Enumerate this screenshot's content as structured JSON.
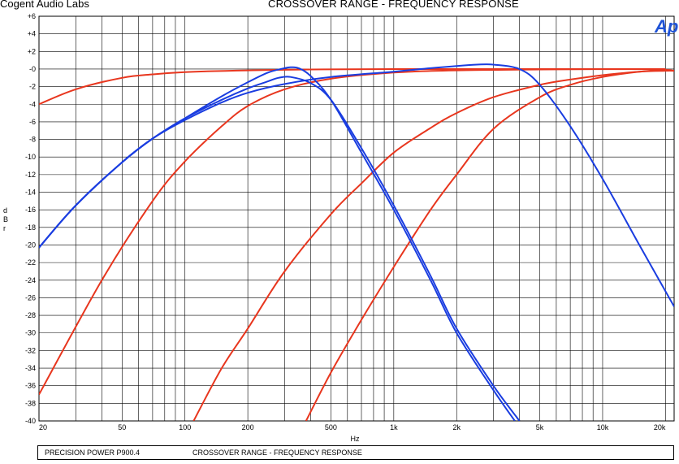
{
  "header": {
    "brand": "Cogent Audio Labs",
    "title": "CROSSOVER RANGE  -  FREQUENCY RESPONSE",
    "logo": "Ap"
  },
  "footer": {
    "left": "PRECISION POWER  P900.4",
    "right": "CROSSOVER RANGE   -   FREQUENCY RESPONSE"
  },
  "colors": {
    "red": "#e8361e",
    "blue": "#1a3de0",
    "logo": "#1f53d6"
  },
  "chart_data": {
    "type": "line",
    "title": "CROSSOVER RANGE  -  FREQUENCY RESPONSE",
    "xlabel": "Hz",
    "ylabel": "dBr",
    "xscale": "log",
    "xlim": [
      20,
      22000
    ],
    "ylim": [
      -40,
      6
    ],
    "grid": true,
    "x_tick_labels": [
      {
        "value": 20,
        "label": "20"
      },
      {
        "value": 50,
        "label": "50"
      },
      {
        "value": 100,
        "label": "100"
      },
      {
        "value": 200,
        "label": "200"
      },
      {
        "value": 500,
        "label": "500"
      },
      {
        "value": 1000,
        "label": "1k"
      },
      {
        "value": 2000,
        "label": "2k"
      },
      {
        "value": 5000,
        "label": "5k"
      },
      {
        "value": 10000,
        "label": "10k"
      },
      {
        "value": 20000,
        "label": "20k"
      }
    ],
    "y_tick_labels": [
      {
        "value": 6,
        "label": "+6"
      },
      {
        "value": 4,
        "label": "+4"
      },
      {
        "value": 2,
        "label": "+2"
      },
      {
        "value": 0,
        "label": "-0"
      },
      {
        "value": -2,
        "label": "-2"
      },
      {
        "value": -4,
        "label": "-4"
      },
      {
        "value": -6,
        "label": "-6"
      },
      {
        "value": -8,
        "label": "-8"
      },
      {
        "value": -10,
        "label": "-10"
      },
      {
        "value": -12,
        "label": "-12"
      },
      {
        "value": -14,
        "label": "-14"
      },
      {
        "value": -16,
        "label": "-16"
      },
      {
        "value": -18,
        "label": "-18"
      },
      {
        "value": -20,
        "label": "-20"
      },
      {
        "value": -22,
        "label": "-22"
      },
      {
        "value": -24,
        "label": "-24"
      },
      {
        "value": -26,
        "label": "-26"
      },
      {
        "value": -28,
        "label": "-28"
      },
      {
        "value": -30,
        "label": "-30"
      },
      {
        "value": -32,
        "label": "-32"
      },
      {
        "value": -34,
        "label": "-34"
      },
      {
        "value": -36,
        "label": "-36"
      },
      {
        "value": -38,
        "label": "-38"
      },
      {
        "value": -40,
        "label": "-40"
      }
    ],
    "series": [
      {
        "color": "red",
        "x": [
          20,
          30,
          50,
          70,
          100,
          200,
          400,
          1000,
          5000,
          20000
        ],
        "y": [
          -4,
          -2.3,
          -1.0,
          -0.6,
          -0.35,
          -0.15,
          -0.05,
          0,
          0,
          0
        ]
      },
      {
        "color": "red",
        "x": [
          20,
          40,
          70,
          100,
          150,
          200,
          300,
          500,
          1000,
          2000,
          5000,
          20000
        ],
        "y": [
          -37,
          -24,
          -15,
          -10.5,
          -6.5,
          -4.2,
          -2.3,
          -1.1,
          -0.4,
          -0.15,
          -0.05,
          0
        ]
      },
      {
        "color": "red",
        "x": [
          110,
          150,
          200,
          300,
          500,
          700,
          1000,
          1500,
          2000,
          3000,
          5000,
          7000,
          10000,
          15000,
          20000,
          22000
        ],
        "y": [
          -40,
          -34,
          -29.5,
          -23,
          -16.5,
          -13,
          -9.5,
          -6.7,
          -5,
          -3.2,
          -1.8,
          -1.2,
          -0.7,
          -0.3,
          -0.2,
          -0.2
        ]
      },
      {
        "color": "red",
        "x": [
          380,
          500,
          700,
          1000,
          1500,
          2000,
          3000,
          5000,
          7000,
          10000,
          15000,
          20000,
          22000
        ],
        "y": [
          -40,
          -34.5,
          -28.5,
          -22.5,
          -16,
          -12,
          -6.8,
          -3.2,
          -1.8,
          -0.9,
          -0.3,
          -0.1,
          -0.2
        ]
      },
      {
        "color": "blue",
        "x": [
          20,
          30,
          50,
          70,
          100,
          150,
          200,
          250,
          280,
          320,
          400,
          500,
          700,
          1000,
          1500,
          2000,
          3000,
          4000
        ],
        "y": [
          -20.3,
          -15.5,
          -10.6,
          -7.9,
          -5.6,
          -3.5,
          -2.2,
          -1.4,
          -1.0,
          -0.9,
          -1.6,
          -3.5,
          -9,
          -15.5,
          -23.5,
          -29.5,
          -36,
          -40
        ]
      },
      {
        "color": "blue",
        "x": [
          20,
          30,
          50,
          70,
          100,
          150,
          200,
          250,
          300,
          320,
          350,
          400,
          500,
          700,
          1000,
          1500,
          2000,
          3000,
          3800
        ],
        "y": [
          -20.3,
          -15.5,
          -10.6,
          -7.9,
          -5.6,
          -3.1,
          -1.5,
          -0.4,
          0.1,
          0.2,
          0.1,
          -0.8,
          -3.5,
          -9.5,
          -16,
          -24,
          -30,
          -36.5,
          -40
        ]
      },
      {
        "color": "blue",
        "x": [
          20,
          30,
          50,
          70,
          100,
          150,
          200,
          300,
          500,
          1000,
          1500,
          2000,
          2500,
          3000,
          4000,
          5000,
          7000,
          10000,
          15000,
          22000
        ],
        "y": [
          -20.3,
          -15.5,
          -10.6,
          -7.9,
          -5.8,
          -3.8,
          -2.7,
          -1.7,
          -0.9,
          -0.3,
          0.1,
          0.35,
          0.5,
          0.5,
          0.0,
          -1.8,
          -6.5,
          -12.5,
          -20,
          -27
        ]
      }
    ]
  }
}
